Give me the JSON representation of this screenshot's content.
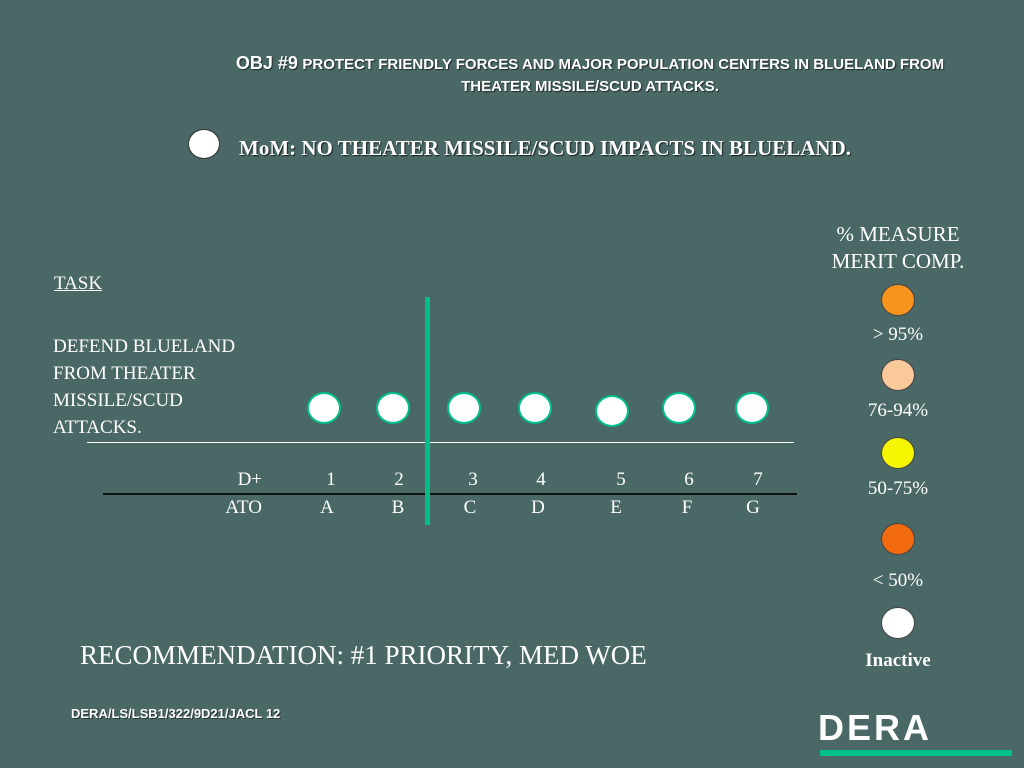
{
  "title": {
    "obj": "OBJ #9",
    "line1": "PROTECT FRIENDLY FORCES AND MAJOR POPULATION CENTERS IN BLUELAND FROM",
    "line2": "THEATER MISSILE/SCUD ATTACKS."
  },
  "mom": {
    "text": "MoM:  NO THEATER MISSILE/SCUD IMPACTS IN BLUELAND.",
    "status_color": "#ffffff"
  },
  "task": {
    "heading": "TASK",
    "lines": [
      "DEFEND BLUELAND",
      "FROM THEATER",
      "MISSILE/SCUD",
      "ATTACKS."
    ]
  },
  "timeline": {
    "row1_label": "D+",
    "row2_label": "ATO",
    "days": [
      "1",
      "2",
      "3",
      "4",
      "5",
      "6",
      "7"
    ],
    "ato": [
      "A",
      "B",
      "C",
      "D",
      "E",
      "F",
      "G"
    ],
    "day_status_colors": [
      "#ffffff",
      "#ffffff",
      "#ffffff",
      "#ffffff",
      "#ffffff",
      "#ffffff",
      "#ffffff"
    ],
    "accent_color": "#00c08a"
  },
  "legend": {
    "title_line1": "% MEASURE",
    "title_line2": "MERIT COMP.",
    "items": [
      {
        "label": "> 95%",
        "color": "#f7941d"
      },
      {
        "label": "76-94%",
        "color": "#f9c89b"
      },
      {
        "label": "50-75%",
        "color": "#f5f500"
      },
      {
        "label": "< 50%",
        "color": "#f26b10"
      },
      {
        "label": "Inactive",
        "color": "#ffffff"
      }
    ]
  },
  "recommendation": "RECOMMENDATION:   #1 PRIORITY, MED WOE",
  "footer": {
    "reference": "DERA/LS/LSB1/322/9D21/JACL 12",
    "logo_text": "DERA"
  }
}
